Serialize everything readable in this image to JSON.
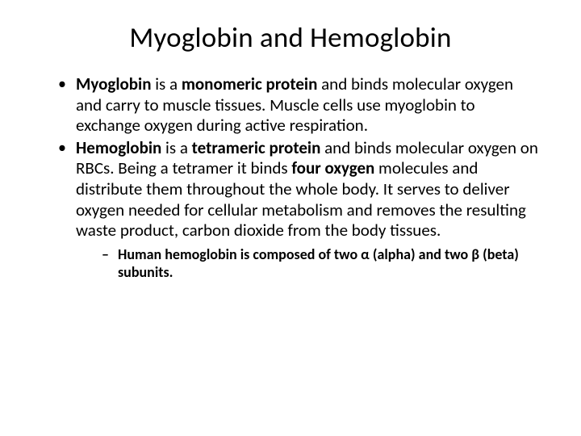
{
  "title": "Myoglobin and Hemoglobin",
  "bullets": {
    "b1": {
      "boldLead": "Myoglobin",
      "mid1": " is a ",
      "boldMid": "monomeric protein",
      "rest": " and binds molecular oxygen and carry to muscle tissues. Muscle cells use myoglobin to exchange oxygen during active respiration."
    },
    "b2": {
      "boldLead": "Hemoglobin",
      "mid1": " is a ",
      "boldMid": "tetrameric protein",
      "rest1": " and binds molecular oxygen on RBCs. Being a tetramer it binds ",
      "boldFour": "four oxygen",
      "rest2": " molecules and distribute them throughout the whole body. It serves to deliver oxygen needed for cellular metabolism and removes the resulting waste product, carbon dioxide from the body tissues."
    },
    "sub1": "Human hemoglobin is composed of two α (alpha) and two β (beta) subunits."
  },
  "colors": {
    "background": "#ffffff",
    "text": "#000000"
  },
  "typography": {
    "title_fontsize": 35,
    "body_fontsize": 21,
    "sub_fontsize": 18,
    "font_family": "Calibri"
  }
}
